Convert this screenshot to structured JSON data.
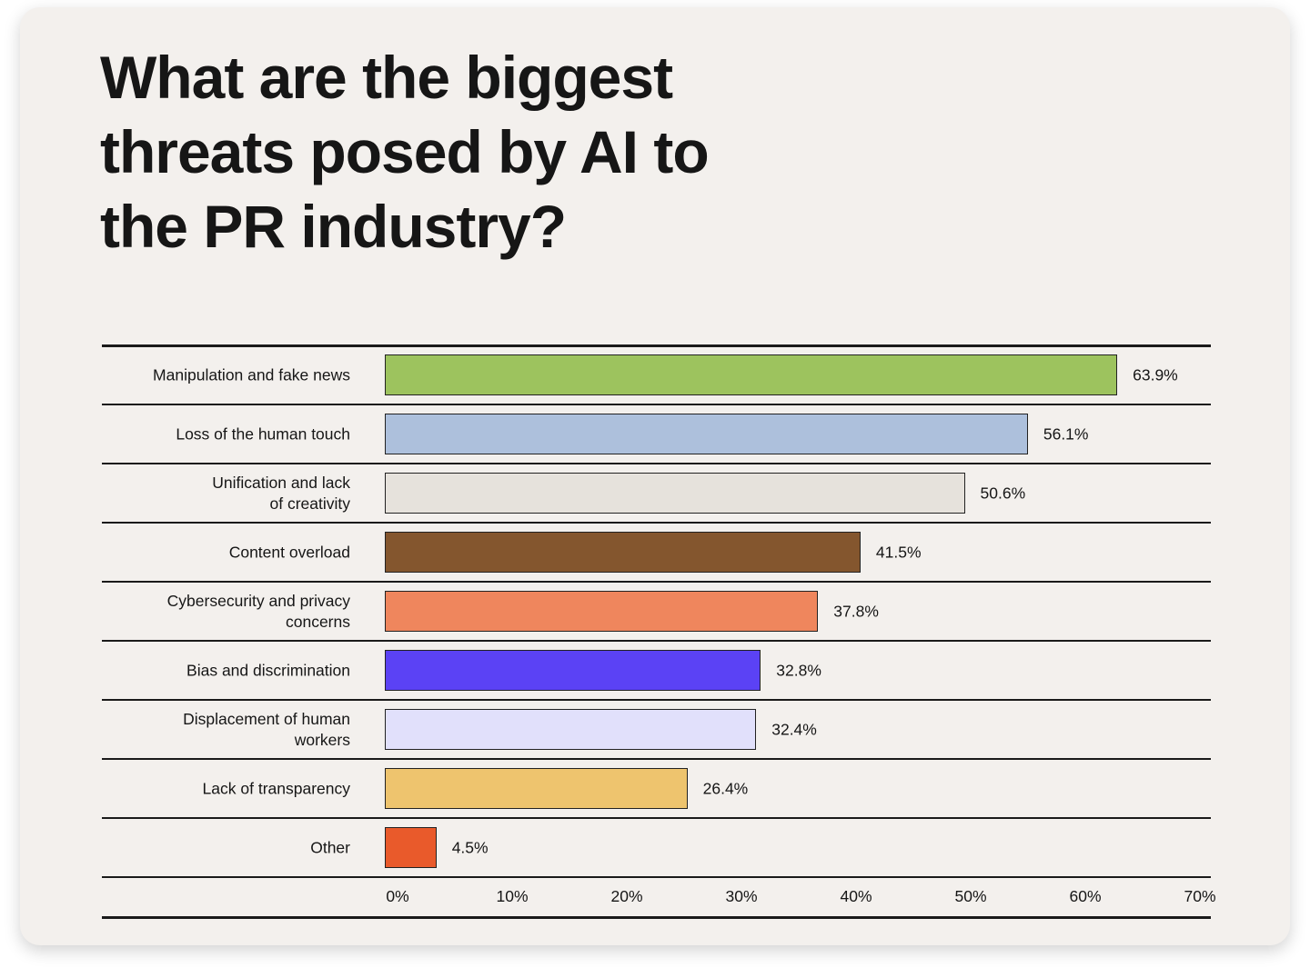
{
  "chart_data": {
    "type": "hbar",
    "title": "What are the biggest threats posed by AI to the PR industry?",
    "categories": [
      "Manipulation and fake news",
      "Loss of the human touch",
      "Unification and lack\nof creativity",
      "Content overload",
      "Cybersecurity and privacy\nconcerns",
      "Bias and discrimination",
      "Displacement of human\nworkers",
      "Lack of transparency",
      "Other"
    ],
    "values": [
      63.9,
      56.1,
      50.6,
      41.5,
      37.8,
      32.8,
      32.4,
      26.4,
      4.5
    ],
    "value_labels": [
      "63.9%",
      "56.1%",
      "50.6%",
      "41.5%",
      "37.8%",
      "32.8%",
      "32.4%",
      "26.4%",
      "4.5%"
    ],
    "colors": [
      "#9dc35e",
      "#adc0dc",
      "#e6e2dc",
      "#84562e",
      "#ef865d",
      "#5b42f5",
      "#e1e0fb",
      "#eec46e",
      "#e95a2b"
    ],
    "xlim": [
      0,
      70
    ],
    "xticks": [
      {
        "value": 0,
        "label": "0%"
      },
      {
        "value": 10,
        "label": "10%"
      },
      {
        "value": 20,
        "label": "20%"
      },
      {
        "value": 30,
        "label": "30%"
      },
      {
        "value": 40,
        "label": "40%"
      },
      {
        "value": 50,
        "label": "50%"
      },
      {
        "value": 60,
        "label": "60%"
      },
      {
        "value": 70,
        "label": "70%"
      }
    ]
  }
}
